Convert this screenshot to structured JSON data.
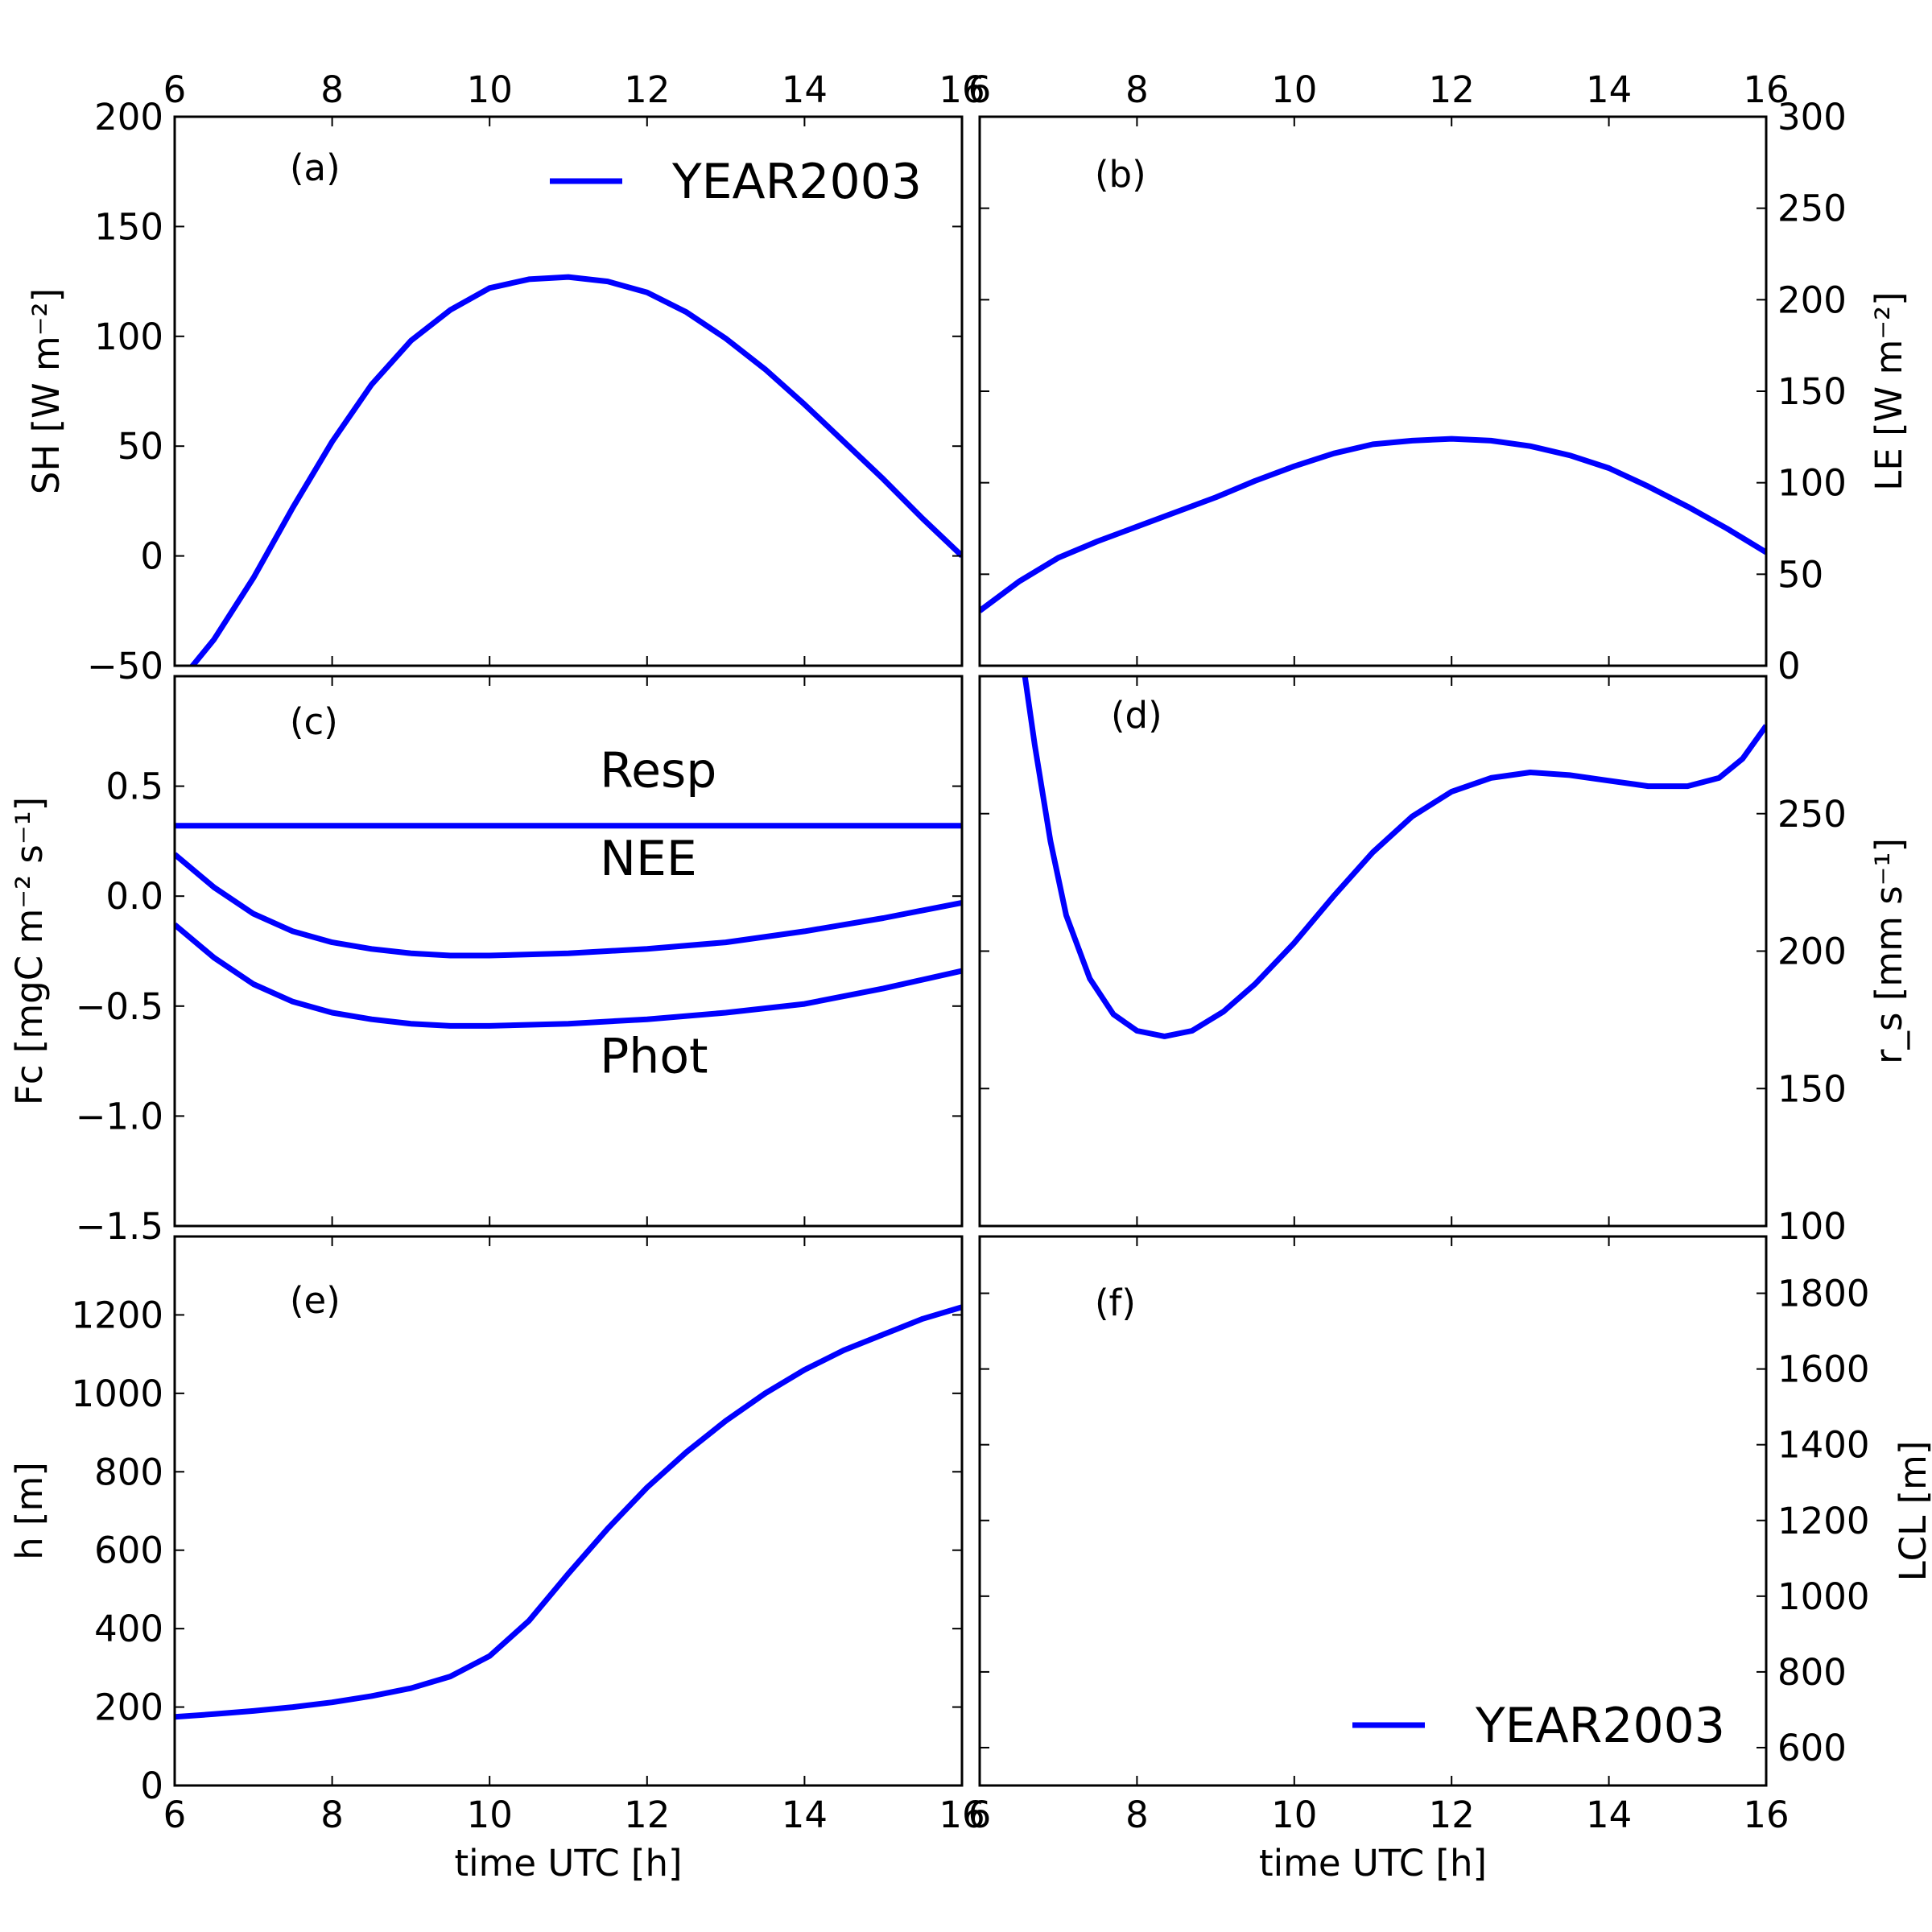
{
  "figure": {
    "line_color": "#0000ff",
    "x_label": "time UTC [h]"
  },
  "chart_data": [
    {
      "id": "a",
      "type": "line",
      "panel_label": "(a)",
      "ylabel": "SH [W m⁻²]",
      "xlim": [
        6,
        16
      ],
      "ylim": [
        -50,
        200
      ],
      "xticks": [
        "6",
        "8",
        "10",
        "12",
        "14",
        "16"
      ],
      "yticks": [
        "−50",
        "0",
        "50",
        "100",
        "150",
        "200"
      ],
      "yaxis_side": "left",
      "xtick_labels_top": true,
      "xtick_labels_bottom": false,
      "legend": {
        "label": "YEAR2003",
        "placement": "upper-right"
      },
      "series": [
        {
          "name": "YEAR2003",
          "x": [
            6,
            6.5,
            7,
            7.5,
            8,
            8.5,
            9,
            9.5,
            10,
            10.5,
            11,
            11.5,
            12,
            12.5,
            13,
            13.5,
            14,
            14.5,
            15,
            15.5,
            16
          ],
          "y": [
            -60,
            -38,
            -10,
            22,
            52,
            78,
            98,
            112,
            122,
            126,
            127,
            125,
            120,
            111,
            99,
            85,
            69,
            52,
            35,
            17,
            0
          ]
        }
      ]
    },
    {
      "id": "b",
      "type": "line",
      "panel_label": "(b)",
      "ylabel": "LE [W m⁻²]",
      "xlim": [
        6,
        16
      ],
      "ylim": [
        0,
        300
      ],
      "xticks": [
        "6",
        "8",
        "10",
        "12",
        "14",
        "16"
      ],
      "yticks": [
        "0",
        "50",
        "100",
        "150",
        "200",
        "250",
        "300"
      ],
      "yaxis_side": "right",
      "xtick_labels_top": true,
      "xtick_labels_bottom": false,
      "series": [
        {
          "name": "YEAR2003",
          "x": [
            6,
            6.5,
            7,
            7.5,
            8,
            8.5,
            9,
            9.5,
            10,
            10.5,
            11,
            11.5,
            12,
            12.5,
            13,
            13.5,
            14,
            14.5,
            15,
            15.5,
            16
          ],
          "y": [
            30,
            46,
            59,
            68,
            76,
            84,
            92,
            101,
            109,
            116,
            121,
            123,
            124,
            123,
            120,
            115,
            108,
            98,
            87,
            75,
            62
          ]
        }
      ]
    },
    {
      "id": "c",
      "type": "line",
      "panel_label": "(c)",
      "ylabel": "Fc [mgC m⁻² s⁻¹]",
      "xlim": [
        6,
        16
      ],
      "ylim": [
        -1.5,
        1.0
      ],
      "xticks": [
        "6",
        "8",
        "10",
        "12",
        "14",
        "16"
      ],
      "yticks": [
        "−1.5",
        "−1.0",
        "−0.5",
        "0.0",
        "0.5"
      ],
      "ytick_values": [
        -1.5,
        -1.0,
        -0.5,
        0.0,
        0.5
      ],
      "yaxis_side": "left",
      "xtick_labels_top": false,
      "xtick_labels_bottom": false,
      "annotations": [
        {
          "text": "Resp",
          "x": 11.4,
          "y": 0.57
        },
        {
          "text": "NEE",
          "x": 11.4,
          "y": 0.17
        },
        {
          "text": "Phot",
          "x": 11.4,
          "y": -0.73
        }
      ],
      "series": [
        {
          "name": "Resp",
          "x": [
            6,
            16
          ],
          "y": [
            0.32,
            0.32
          ]
        },
        {
          "name": "NEE",
          "x": [
            6,
            6.5,
            7,
            7.5,
            8,
            8.5,
            9,
            9.5,
            10,
            11,
            12,
            13,
            14,
            15,
            16
          ],
          "y": [
            0.19,
            0.04,
            -0.08,
            -0.16,
            -0.21,
            -0.24,
            -0.26,
            -0.27,
            -0.27,
            -0.26,
            -0.24,
            -0.21,
            -0.16,
            -0.1,
            -0.03
          ]
        },
        {
          "name": "Phot",
          "x": [
            6,
            6.5,
            7,
            7.5,
            8,
            8.5,
            9,
            9.5,
            10,
            11,
            12,
            13,
            14,
            15,
            16
          ],
          "y": [
            -0.13,
            -0.28,
            -0.4,
            -0.48,
            -0.53,
            -0.56,
            -0.58,
            -0.59,
            -0.59,
            -0.58,
            -0.56,
            -0.53,
            -0.49,
            -0.42,
            -0.34
          ]
        }
      ]
    },
    {
      "id": "d",
      "type": "line",
      "panel_label": "(d)",
      "ylabel": "r_s [mm s⁻¹]",
      "xlim": [
        6,
        16
      ],
      "ylim": [
        100,
        300
      ],
      "xticks": [
        "6",
        "8",
        "10",
        "12",
        "14",
        "16"
      ],
      "yticks": [
        "100",
        "150",
        "200",
        "250"
      ],
      "ytick_values": [
        100,
        150,
        200,
        250
      ],
      "yaxis_side": "right",
      "xtick_labels_top": false,
      "xtick_labels_bottom": false,
      "series": [
        {
          "name": "YEAR2003",
          "x": [
            6.55,
            6.7,
            6.9,
            7.1,
            7.4,
            7.7,
            8.0,
            8.35,
            8.7,
            9.1,
            9.5,
            10.0,
            10.5,
            11.0,
            11.5,
            12.0,
            12.5,
            13.0,
            13.5,
            14.0,
            14.5,
            15.0,
            15.4,
            15.7,
            16.0
          ],
          "y": [
            305,
            275,
            240,
            213,
            190,
            177,
            171,
            169,
            171,
            178,
            188,
            203,
            220,
            236,
            249,
            258,
            263,
            265,
            264,
            262,
            260,
            260,
            263,
            270,
            282
          ]
        }
      ]
    },
    {
      "id": "e",
      "type": "line",
      "panel_label": "(e)",
      "ylabel": "h [m]",
      "xlim": [
        6,
        16
      ],
      "ylim": [
        0,
        1400
      ],
      "xticks": [
        "6",
        "8",
        "10",
        "12",
        "14",
        "16"
      ],
      "yticks": [
        "0",
        "200",
        "400",
        "600",
        "800",
        "1000",
        "1200"
      ],
      "ytick_values": [
        0,
        200,
        400,
        600,
        800,
        1000,
        1200
      ],
      "yaxis_side": "left",
      "xtick_labels_top": false,
      "xtick_labels_bottom": true,
      "series": [
        {
          "name": "YEAR2003",
          "x": [
            6,
            6.5,
            7,
            7.5,
            8,
            8.5,
            9,
            9.5,
            10,
            10.5,
            11,
            11.5,
            12,
            12.5,
            13,
            13.5,
            14,
            14.5,
            15,
            15.5,
            16
          ],
          "y": [
            175,
            182,
            190,
            200,
            212,
            228,
            248,
            278,
            330,
            420,
            540,
            655,
            760,
            850,
            930,
            1000,
            1060,
            1110,
            1150,
            1190,
            1220
          ]
        }
      ]
    },
    {
      "id": "f",
      "type": "line",
      "panel_label": "(f)",
      "ylabel": "LCL [m]",
      "xlim": [
        6,
        16
      ],
      "ylim": [
        500,
        1950
      ],
      "xticks": [
        "6",
        "8",
        "10",
        "12",
        "14",
        "16"
      ],
      "yticks": [
        "600",
        "800",
        "1000",
        "1200",
        "1400",
        "1600",
        "1800"
      ],
      "ytick_values": [
        600,
        800,
        1000,
        1200,
        1400,
        1600,
        1800
      ],
      "yaxis_side": "right",
      "xtick_labels_top": false,
      "xtick_labels_bottom": true,
      "legend": {
        "label": "YEAR2003",
        "placement": "lower-right"
      },
      "series": []
    }
  ]
}
